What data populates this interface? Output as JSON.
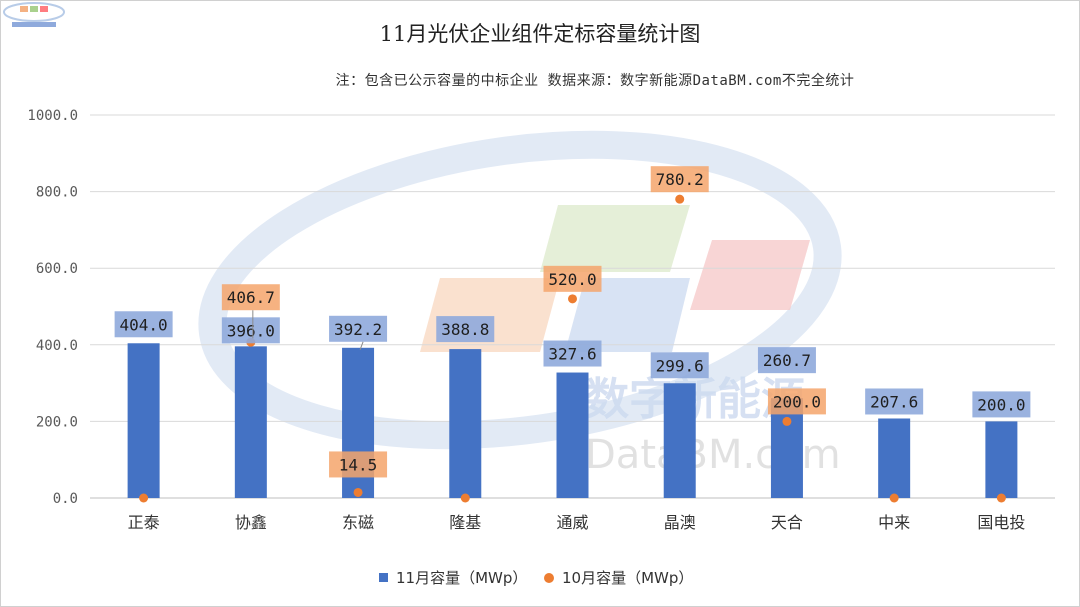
{
  "chart_data": {
    "type": "bar",
    "title": "11月光伏企业组件定标容量统计图",
    "subtitle": "注：包含已公示容量的中标企业 数据来源：数字新能源DataBM.com不完全统计",
    "categories": [
      "正泰",
      "协鑫",
      "东磁",
      "隆基",
      "通威",
      "晶澳",
      "天合",
      "中来",
      "国电投"
    ],
    "series": [
      {
        "name": "11月容量（MWp）",
        "type": "bar",
        "color": "#4472c4",
        "values": [
          404.0,
          396.0,
          392.2,
          388.8,
          327.6,
          299.6,
          260.7,
          207.6,
          200.0
        ],
        "value_labels": [
          "404.0",
          "396.0",
          "392.2",
          "388.8",
          "327.6",
          "299.6",
          "260.7",
          "207.6",
          "200.0"
        ]
      },
      {
        "name": "10月容量（MWp）",
        "type": "scatter",
        "color": "#ed7d31",
        "values": [
          0,
          406.7,
          14.5,
          0,
          520.0,
          780.2,
          200.0,
          0,
          0
        ],
        "value_labels": [
          "",
          "406.7",
          "14.5",
          "",
          "520.0",
          "780.2",
          "200.0",
          "",
          ""
        ]
      }
    ],
    "y_ticks": [
      "0.0",
      "200.0",
      "400.0",
      "600.0",
      "800.0",
      "1000.0"
    ],
    "ylim": [
      0,
      1000
    ],
    "grid": true,
    "legend_position": "bottom"
  },
  "watermark": {
    "text_cn": "数字新能源",
    "text_en": "DataBM.com"
  }
}
